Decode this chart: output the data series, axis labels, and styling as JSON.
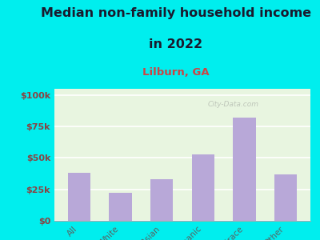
{
  "title_line1": "Median non-family household income",
  "title_line2": "in 2022",
  "subtitle": "Lilburn, GA",
  "categories": [
    "All",
    "White",
    "Asian",
    "Hispanic",
    "Multirace",
    "Other"
  ],
  "values": [
    38000,
    22000,
    33000,
    53000,
    82000,
    37000
  ],
  "bar_color": "#b8a8d8",
  "background_outer": "#00eeee",
  "background_plot_top": "#e8f5e0",
  "background_plot_bottom": "#f5ffe8",
  "title_color": "#1a1a2e",
  "subtitle_color": "#cc4444",
  "ytick_color": "#884444",
  "xtick_color": "#556666",
  "yticks": [
    0,
    25000,
    50000,
    75000,
    100000
  ],
  "ytick_labels": [
    "$0",
    "$25k",
    "$50k",
    "$75k",
    "$100k"
  ],
  "ylim": [
    0,
    105000
  ],
  "watermark": "City-Data.com",
  "title_fontsize": 11.5,
  "subtitle_fontsize": 9.5,
  "ytick_fontsize": 8,
  "xtick_fontsize": 7.5
}
